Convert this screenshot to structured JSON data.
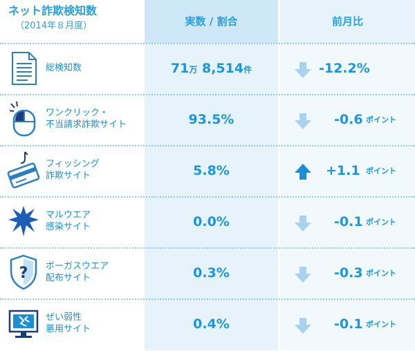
{
  "header": {
    "title": "ネット詐欺検知数",
    "subtitle": "（2014年８月度）",
    "col_value": "実数 / 割合",
    "col_change": "前月比"
  },
  "colors": {
    "accent": "#2a9fe0",
    "value_bg": "#e6f3fb",
    "arrow": "#a8d2ee",
    "arrow_up": "#1a8ed6"
  },
  "rows": [
    {
      "icon": "document-icon",
      "label1": "総検知数",
      "label2": "",
      "value_parts": [
        "71",
        "万",
        "8,514",
        "件"
      ],
      "change": "-12.2%",
      "change_unit": "",
      "direction": "down"
    },
    {
      "icon": "mouse-click-icon",
      "label1": "ワンクリック・",
      "label2": "不当請求詐欺サイト",
      "value": "93.5%",
      "change": "-0.6",
      "change_unit": "ポイント",
      "direction": "down"
    },
    {
      "icon": "phishing-card-icon",
      "label1": "フィッシング",
      "label2": "詐欺サイト",
      "value": "5.8%",
      "change": "+1.1",
      "change_unit": "ポイント",
      "direction": "up"
    },
    {
      "icon": "malware-burst-icon",
      "label1": "マルウエア",
      "label2": "感染サイト",
      "value": "0.0%",
      "change": "-0.1",
      "change_unit": "ポイント",
      "direction": "down"
    },
    {
      "icon": "shield-question-icon",
      "label1": "ボーガスウエア",
      "label2": "配布サイト",
      "value": "0.3%",
      "change": "-0.3",
      "change_unit": "ポイント",
      "direction": "down"
    },
    {
      "icon": "broken-monitor-icon",
      "label1": "ぜい弱性",
      "label2": "悪用サイト",
      "value": "0.4%",
      "change": "-0.1",
      "change_unit": "ポイント",
      "direction": "down"
    }
  ]
}
